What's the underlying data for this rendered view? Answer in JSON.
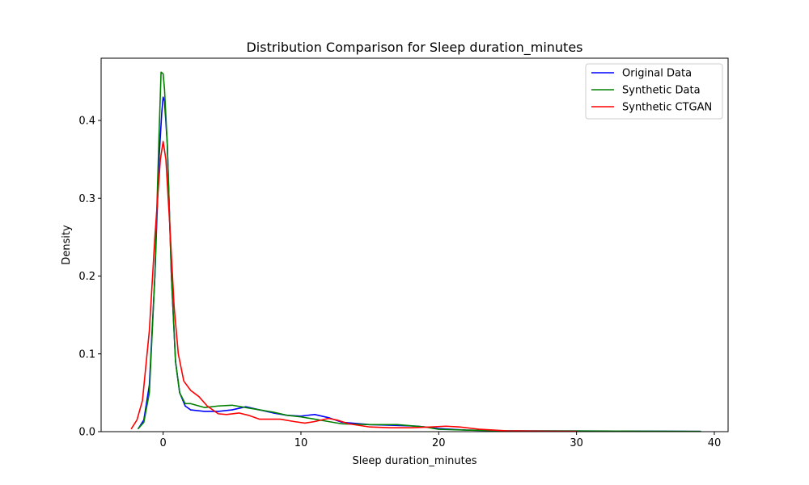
{
  "chart_data": {
    "type": "line",
    "title": "Distribution Comparison for Sleep duration_minutes",
    "xlabel": "Sleep duration_minutes",
    "ylabel": "Density",
    "xlim": [
      -4.5,
      41
    ],
    "ylim": [
      0,
      0.48
    ],
    "xticks": [
      0,
      10,
      20,
      30,
      40
    ],
    "yticks": [
      0.0,
      0.1,
      0.2,
      0.3,
      0.4
    ],
    "ytick_labels": [
      "0.0",
      "0.1",
      "0.2",
      "0.3",
      "0.4"
    ],
    "grid": false,
    "legend_position": "top-right",
    "series": [
      {
        "name": "Original Data",
        "color": "#0000ff",
        "points": [
          [
            -1.8,
            0.004
          ],
          [
            -1.4,
            0.015
          ],
          [
            -1.0,
            0.06
          ],
          [
            -0.6,
            0.2
          ],
          [
            -0.3,
            0.35
          ],
          [
            -0.1,
            0.41
          ],
          [
            0.0,
            0.43
          ],
          [
            0.1,
            0.425
          ],
          [
            0.3,
            0.37
          ],
          [
            0.6,
            0.2
          ],
          [
            0.9,
            0.09
          ],
          [
            1.2,
            0.05
          ],
          [
            1.6,
            0.033
          ],
          [
            2.0,
            0.028
          ],
          [
            3.0,
            0.026
          ],
          [
            4.0,
            0.026
          ],
          [
            5.0,
            0.028
          ],
          [
            6.0,
            0.032
          ],
          [
            7.0,
            0.028
          ],
          [
            8.0,
            0.024
          ],
          [
            9.0,
            0.021
          ],
          [
            10.0,
            0.02
          ],
          [
            11.0,
            0.022
          ],
          [
            12.0,
            0.018
          ],
          [
            13.0,
            0.012
          ],
          [
            15.0,
            0.009
          ],
          [
            17.0,
            0.008
          ],
          [
            18.5,
            0.007
          ],
          [
            20.0,
            0.004
          ],
          [
            22.0,
            0.002
          ],
          [
            25.0,
            0.001
          ],
          [
            30.0,
            0.0008
          ],
          [
            35.0,
            0.0006
          ],
          [
            39.0,
            0.0004
          ]
        ]
      },
      {
        "name": "Synthetic Data",
        "color": "#008000",
        "points": [
          [
            -1.8,
            0.004
          ],
          [
            -1.4,
            0.012
          ],
          [
            -1.0,
            0.05
          ],
          [
            -0.6,
            0.2
          ],
          [
            -0.3,
            0.38
          ],
          [
            -0.15,
            0.462
          ],
          [
            0.0,
            0.46
          ],
          [
            0.1,
            0.44
          ],
          [
            0.3,
            0.37
          ],
          [
            0.6,
            0.2
          ],
          [
            0.9,
            0.09
          ],
          [
            1.2,
            0.05
          ],
          [
            1.6,
            0.036
          ],
          [
            2.0,
            0.036
          ],
          [
            3.0,
            0.031
          ],
          [
            4.0,
            0.033
          ],
          [
            5.0,
            0.034
          ],
          [
            6.0,
            0.031
          ],
          [
            7.0,
            0.028
          ],
          [
            8.0,
            0.025
          ],
          [
            9.0,
            0.021
          ],
          [
            10.0,
            0.019
          ],
          [
            11.0,
            0.016
          ],
          [
            12.0,
            0.013
          ],
          [
            13.0,
            0.01
          ],
          [
            15.0,
            0.009
          ],
          [
            17.0,
            0.009
          ],
          [
            19.0,
            0.006
          ],
          [
            20.0,
            0.003
          ],
          [
            22.0,
            0.002
          ],
          [
            25.0,
            0.001
          ],
          [
            30.0,
            0.0008
          ],
          [
            35.0,
            0.0006
          ],
          [
            39.0,
            0.0004
          ]
        ]
      },
      {
        "name": "Synthetic CTGAN",
        "color": "#ff0000",
        "points": [
          [
            -2.3,
            0.004
          ],
          [
            -1.9,
            0.015
          ],
          [
            -1.5,
            0.04
          ],
          [
            -1.0,
            0.13
          ],
          [
            -0.6,
            0.25
          ],
          [
            -0.2,
            0.35
          ],
          [
            0.0,
            0.373
          ],
          [
            0.2,
            0.35
          ],
          [
            0.5,
            0.26
          ],
          [
            0.8,
            0.16
          ],
          [
            1.1,
            0.1
          ],
          [
            1.5,
            0.065
          ],
          [
            2.0,
            0.053
          ],
          [
            2.6,
            0.045
          ],
          [
            3.2,
            0.033
          ],
          [
            4.0,
            0.023
          ],
          [
            4.6,
            0.022
          ],
          [
            5.5,
            0.024
          ],
          [
            6.2,
            0.021
          ],
          [
            7.0,
            0.016
          ],
          [
            7.8,
            0.016
          ],
          [
            8.5,
            0.016
          ],
          [
            9.5,
            0.013
          ],
          [
            10.3,
            0.011
          ],
          [
            11.0,
            0.013
          ],
          [
            12.0,
            0.017
          ],
          [
            12.6,
            0.015
          ],
          [
            13.5,
            0.01
          ],
          [
            15.0,
            0.006
          ],
          [
            16.5,
            0.005
          ],
          [
            18.0,
            0.005
          ],
          [
            19.5,
            0.006
          ],
          [
            20.5,
            0.007
          ],
          [
            21.5,
            0.006
          ],
          [
            23.0,
            0.003
          ],
          [
            25.0,
            0.001
          ],
          [
            28.0,
            0.0005
          ],
          [
            30.0,
            0.0003
          ]
        ]
      }
    ]
  }
}
